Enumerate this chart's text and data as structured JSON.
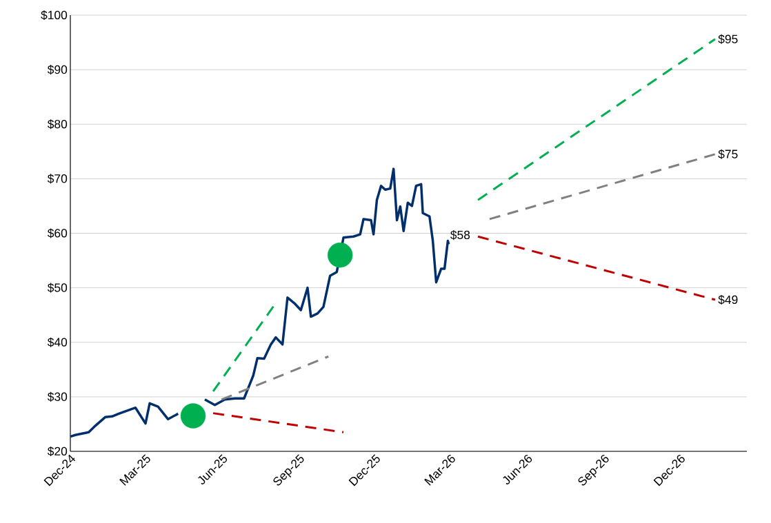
{
  "chart_data": {
    "type": "line",
    "xlim": [
      "2024-12-01",
      "2027-02-19"
    ],
    "xticks": [
      {
        "value": "2024-12-01",
        "label": "Dec-24"
      },
      {
        "value": "2025-03-01",
        "label": "Mar-25"
      },
      {
        "value": "2025-06-01",
        "label": "Jun-25"
      },
      {
        "value": "2025-09-01",
        "label": "Sep-25"
      },
      {
        "value": "2025-12-01",
        "label": "Dec-25"
      },
      {
        "value": "2026-03-01",
        "label": "Mar-26"
      },
      {
        "value": "2026-06-01",
        "label": "Jun-26"
      },
      {
        "value": "2026-09-01",
        "label": "Sep-26"
      },
      {
        "value": "2026-12-01",
        "label": "Dec-26"
      }
    ],
    "ylim": [
      20,
      100
    ],
    "yticks": [
      {
        "value": 20,
        "label": "$20"
      },
      {
        "value": 30,
        "label": "$30"
      },
      {
        "value": 40,
        "label": "$40"
      },
      {
        "value": 50,
        "label": "$50"
      },
      {
        "value": 60,
        "label": "$60"
      },
      {
        "value": 70,
        "label": "$70"
      },
      {
        "value": 80,
        "label": "$80"
      },
      {
        "value": 90,
        "label": "$90"
      },
      {
        "value": 100,
        "label": "$100"
      }
    ],
    "grid": "y",
    "series": [
      {
        "color": "#002f6c",
        "line_style": "solid",
        "x": [
          "2024-12-01",
          "2024-12-07",
          "2024-12-23",
          "2024-12-31",
          "2025-01-12",
          "2025-01-20",
          "2025-01-28",
          "2025-02-17",
          "2025-03-01",
          "2025-03-06",
          "2025-03-16",
          "2025-03-28",
          "2025-04-09",
          "2025-04-21",
          "2025-04-27",
          "2025-05-11",
          "2025-05-23",
          "2025-06-04",
          "2025-06-16",
          "2025-06-27",
          "2025-07-03",
          "2025-07-08",
          "2025-07-13",
          "2025-07-21",
          "2025-07-29",
          "2025-08-04",
          "2025-08-12",
          "2025-08-18",
          "2025-08-26",
          "2025-09-03",
          "2025-09-11",
          "2025-09-15",
          "2025-09-23",
          "2025-09-30",
          "2025-10-08",
          "2025-10-16",
          "2025-10-24",
          "2025-11-05",
          "2025-11-13",
          "2025-11-17",
          "2025-11-26",
          "2025-11-29",
          "2025-12-03",
          "2025-12-08",
          "2025-12-13",
          "2025-12-19",
          "2025-12-23",
          "2025-12-27",
          "2025-12-31",
          "2026-01-04",
          "2026-01-09",
          "2026-01-14",
          "2026-01-19",
          "2026-01-25",
          "2026-01-27",
          "2026-02-04",
          "2026-02-08",
          "2026-02-12",
          "2026-02-18",
          "2026-02-22",
          "2026-02-26",
          "2026-02-27"
        ],
        "values": [
          22.7,
          23.0,
          23.5,
          24.7,
          26.3,
          26.4,
          26.9,
          28.0,
          25.1,
          28.8,
          28.2,
          25.9,
          26.9,
          null,
          null,
          29.5,
          28.5,
          29.5,
          29.7,
          29.7,
          32.0,
          33.9,
          37.1,
          37.0,
          39.6,
          40.9,
          39.6,
          48.2,
          47.2,
          45.9,
          50.0,
          44.7,
          45.3,
          46.5,
          52.2,
          52.9,
          59.2,
          59.4,
          59.8,
          62.6,
          62.4,
          59.8,
          66.1,
          68.7,
          68.0,
          68.2,
          71.8,
          62.4,
          64.9,
          60.4,
          65.6,
          65.0,
          68.7,
          69.0,
          63.7,
          63.1,
          58.6,
          51.0,
          53.5,
          53.5,
          58.6,
          58.0
        ]
      },
      {
        "color": "#00b050",
        "line_style": "dashed",
        "x": [
          "2025-05-21",
          "2025-08-04"
        ],
        "values": [
          31.0,
          47.2
        ]
      },
      {
        "color": "#808080",
        "line_style": "dashed",
        "x": [
          "2025-05-31",
          "2025-10-06"
        ],
        "values": [
          29.5,
          37.4
        ]
      },
      {
        "color": "#c00000",
        "line_style": "dashed",
        "x": [
          "2025-05-21",
          "2025-10-24"
        ],
        "values": [
          27.0,
          23.5
        ]
      },
      {
        "color": "#00b050",
        "line_style": "dashed",
        "x": [
          "2026-04-03",
          "2027-01-12"
        ],
        "values": [
          66.1,
          95.6
        ]
      },
      {
        "color": "#808080",
        "line_style": "dashed",
        "x": [
          "2026-04-17",
          "2027-01-12"
        ],
        "values": [
          62.6,
          74.5
        ]
      },
      {
        "color": "#c00000",
        "line_style": "dashed",
        "x": [
          "2026-04-03",
          "2027-01-12"
        ],
        "values": [
          59.4,
          47.8
        ]
      },
      {
        "type": "scatter",
        "marker": "circle",
        "color": "#00b050",
        "x": [
          "2025-04-27",
          "2025-10-20"
        ],
        "values": [
          26.5,
          56.0
        ]
      }
    ],
    "annotations": [
      {
        "text": "$95",
        "x": "2027-01-12",
        "y": 95.6
      },
      {
        "text": "$75",
        "x": "2027-01-12",
        "y": 74.5
      },
      {
        "text": "$49",
        "x": "2027-01-12",
        "y": 47.8
      },
      "$58"
    ]
  }
}
